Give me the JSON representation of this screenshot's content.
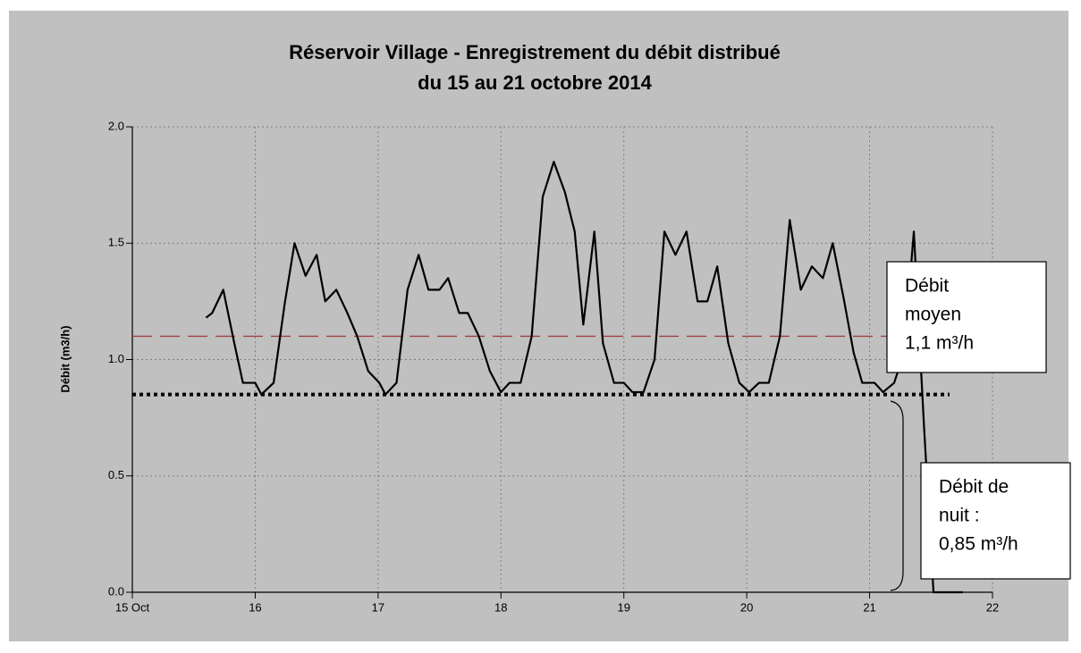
{
  "chart_data": {
    "type": "line",
    "title": [
      "Réservoir Village - Enregistrement du débit distribué",
      "du 15 au 21 octobre 2014"
    ],
    "y_label": "Débit  (m3/h)",
    "xlim": [
      15,
      22
    ],
    "xticks": [
      {
        "value": 15,
        "label": "15 Oct"
      },
      16,
      17,
      18,
      19,
      20,
      21,
      22
    ],
    "ylim": [
      0,
      2
    ],
    "yticks": [
      {
        "value": 0,
        "label": "0.0"
      },
      0.5,
      {
        "value": 1,
        "label": "1.0"
      },
      1.5,
      {
        "value": 2,
        "label": "2.0"
      }
    ],
    "grid": true,
    "series": [
      {
        "color": "#000000",
        "x": [
          15.6,
          15.65,
          15.74,
          15.83,
          15.9,
          16.0,
          16.05,
          16.15,
          16.24,
          16.32,
          16.41,
          16.5,
          16.57,
          16.66,
          16.75,
          16.83,
          16.92,
          17.01,
          17.06,
          17.15,
          17.24,
          17.33,
          17.41,
          17.5,
          17.57,
          17.66,
          17.73,
          17.82,
          17.91,
          18.0,
          18.07,
          18.16,
          18.25,
          18.34,
          18.43,
          18.52,
          18.6,
          18.67,
          18.76,
          18.83,
          18.92,
          19.0,
          19.07,
          19.16,
          19.25,
          19.33,
          19.42,
          19.51,
          19.6,
          19.68,
          19.76,
          19.85,
          19.94,
          20.02,
          20.1,
          20.18,
          20.27,
          20.35,
          20.44,
          20.53,
          20.62,
          20.7,
          20.79,
          20.87,
          20.94,
          21.04,
          21.11,
          21.2,
          21.28,
          21.36,
          21.44,
          21.52,
          21.76
        ],
        "values": [
          1.18,
          1.2,
          1.3,
          1.07,
          0.9,
          0.9,
          0.85,
          0.9,
          1.24,
          1.5,
          1.36,
          1.45,
          1.25,
          1.3,
          1.2,
          1.1,
          0.95,
          0.9,
          0.85,
          0.9,
          1.3,
          1.45,
          1.3,
          1.3,
          1.35,
          1.2,
          1.2,
          1.1,
          0.95,
          0.86,
          0.9,
          0.9,
          1.1,
          1.7,
          1.85,
          1.72,
          1.55,
          1.15,
          1.55,
          1.07,
          0.9,
          0.9,
          0.86,
          0.86,
          1.0,
          1.55,
          1.45,
          1.55,
          1.25,
          1.25,
          1.4,
          1.07,
          0.9,
          0.86,
          0.9,
          0.9,
          1.1,
          1.6,
          1.3,
          1.4,
          1.35,
          1.5,
          1.26,
          1.03,
          0.9,
          0.9,
          0.86,
          0.9,
          1.03,
          1.55,
          0.74,
          0,
          0
        ]
      }
    ],
    "hlines": [
      {
        "value": 1.1,
        "color": "#a04040",
        "style": "dashed"
      },
      {
        "value": 0.85,
        "color": "#000000",
        "style": "dotted"
      }
    ],
    "annotations": [
      {
        "lines": [
          "Débit",
          "moyen",
          "1,1 m³/h"
        ]
      },
      {
        "lines": [
          "Débit de",
          "nuit :",
          "0,85 m³/h"
        ]
      }
    ]
  }
}
